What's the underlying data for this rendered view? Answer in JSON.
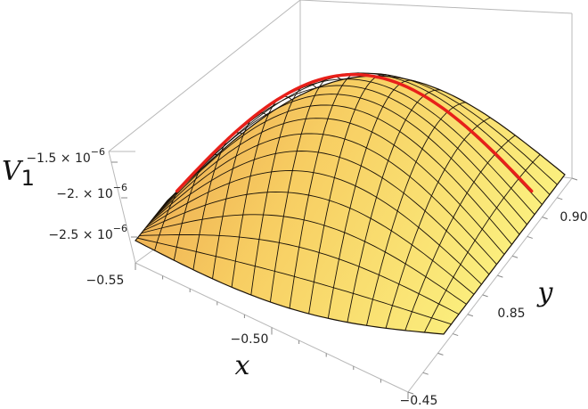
{
  "chart_data": {
    "type": "surface3d",
    "xlabel": "x",
    "ylabel": "y",
    "zlabel_main": "V",
    "zlabel_sub": "1",
    "x_ticks": [
      "−0.55",
      "−0.50",
      "−0.45"
    ],
    "y_ticks": [
      "0.85",
      "0.90"
    ],
    "z_ticks": [
      {
        "mantissa": "−1.5",
        "exp": "−6"
      },
      {
        "mantissa": "−2.",
        "exp": "−6"
      },
      {
        "mantissa": "−2.5",
        "exp": "−6"
      }
    ],
    "xlim": [
      -0.55,
      -0.45
    ],
    "ylim": [
      0.82,
      0.93
    ],
    "zlim": [
      -2.8e-06,
      -1.4e-06
    ],
    "surface_color_light": "#fbef7e",
    "surface_color_dark": "#e9a04a",
    "mesh_color": "#1a1208",
    "mesh_lines_per_axis": 16,
    "ridge_curve_color": "#e8201a",
    "box_color": "#b8b8b8"
  }
}
